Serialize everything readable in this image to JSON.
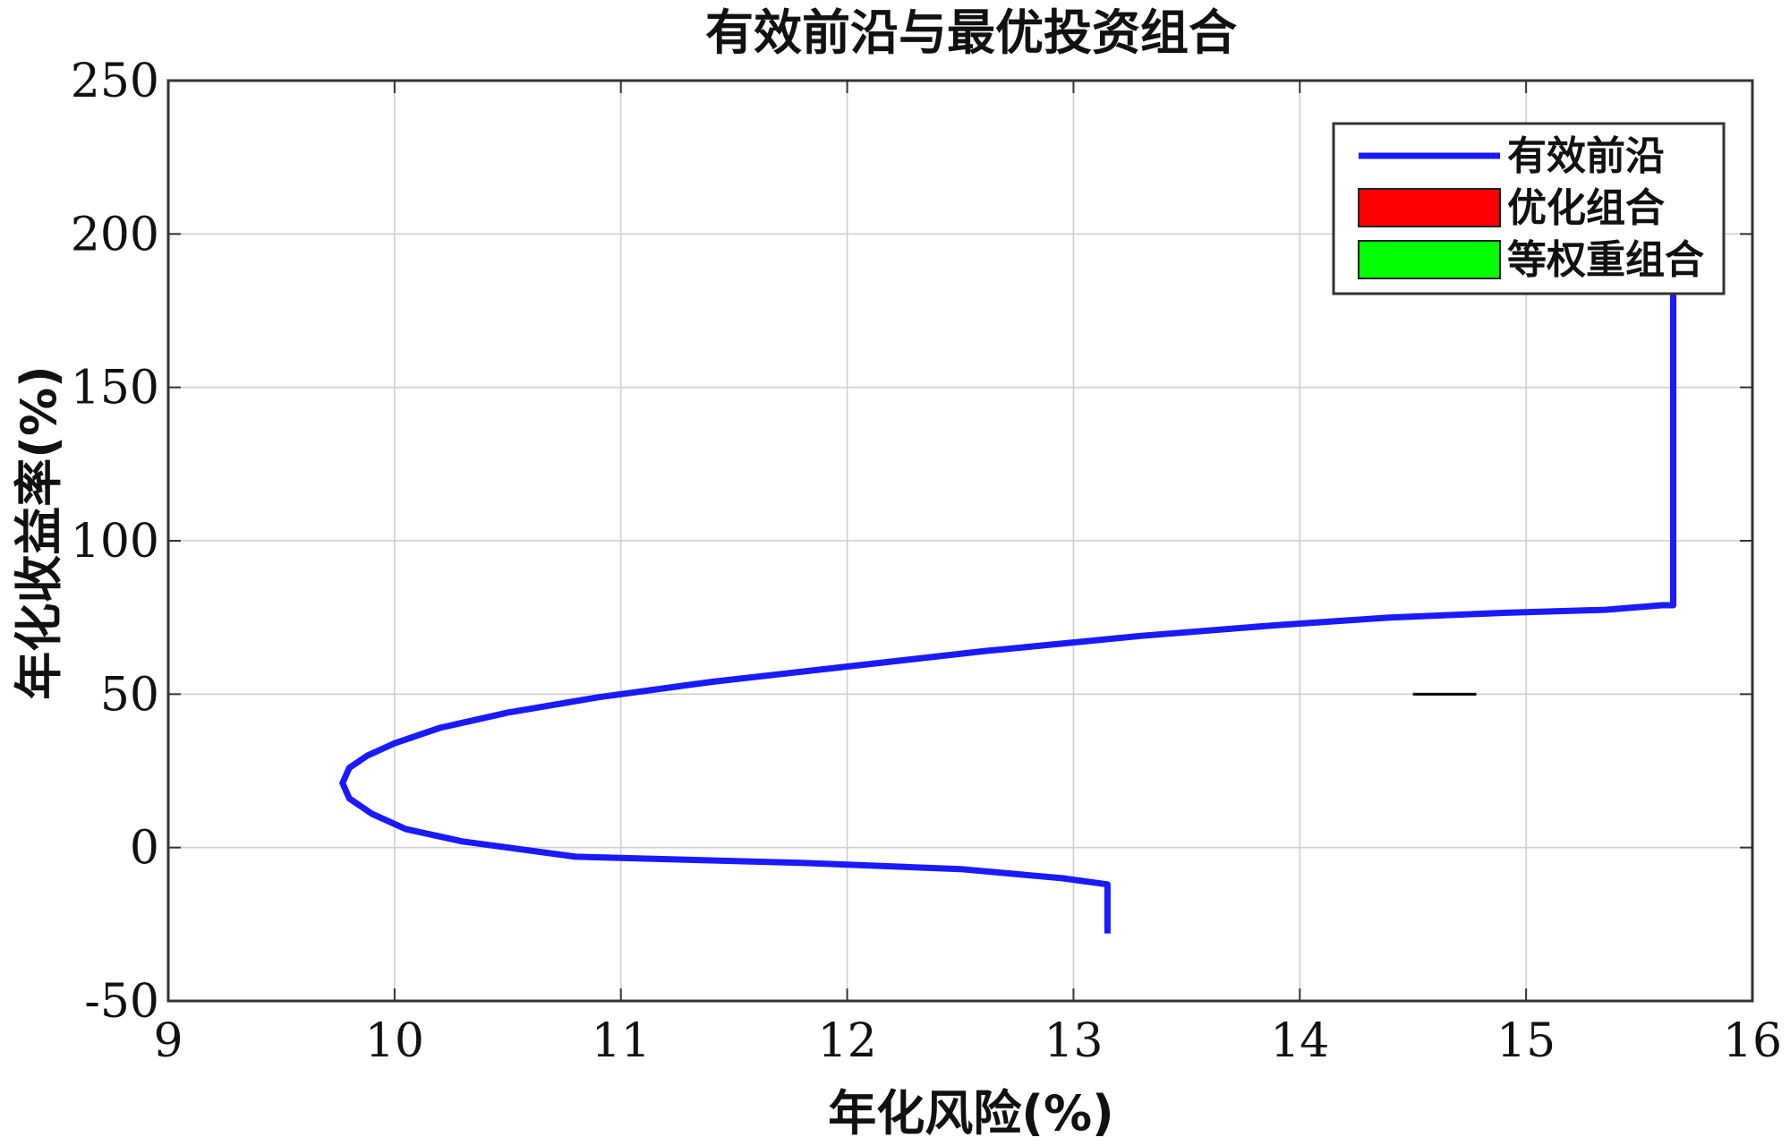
{
  "chart_data": {
    "type": "line",
    "title": "有效前沿与最优投资组合",
    "xlabel": "年化风险(%)",
    "ylabel": "年化收益率(%)",
    "xlim": [
      9,
      16
    ],
    "ylim": [
      -50,
      250
    ],
    "xticks": [
      9,
      10,
      11,
      12,
      13,
      14,
      15,
      16
    ],
    "yticks": [
      -50,
      0,
      50,
      100,
      150,
      200,
      250
    ],
    "grid": true,
    "legend_position": "top-right",
    "legend": [
      {
        "label": "有效前沿",
        "kind": "line",
        "color": "#1a1aff"
      },
      {
        "label": "优化组合",
        "kind": "patch",
        "color": "#ff0000"
      },
      {
        "label": "等权重组合",
        "kind": "patch",
        "color": "#00ff00"
      }
    ],
    "series": [
      {
        "name": "有效前沿",
        "color": "#1a1aff",
        "x": [
          13.15,
          13.15,
          12.95,
          12.5,
          11.8,
          10.8,
          10.3,
          10.05,
          9.9,
          9.8,
          9.77,
          9.8,
          9.88,
          10.0,
          10.2,
          10.5,
          10.9,
          11.4,
          12.0,
          12.6,
          13.3,
          13.9,
          14.4,
          14.9,
          15.35,
          15.6,
          15.65,
          15.65
        ],
        "y": [
          -28,
          -12,
          -10,
          -7,
          -5,
          -3,
          2,
          6,
          11,
          16,
          21,
          26,
          30,
          34,
          39,
          44,
          49,
          54,
          59,
          64,
          69,
          72.5,
          75,
          76.5,
          77.5,
          79,
          79,
          183
        ]
      }
    ],
    "annotations": [
      {
        "kind": "segment",
        "x": [
          14.5,
          14.78
        ],
        "y": [
          50,
          50
        ],
        "color": "#000000"
      }
    ]
  }
}
